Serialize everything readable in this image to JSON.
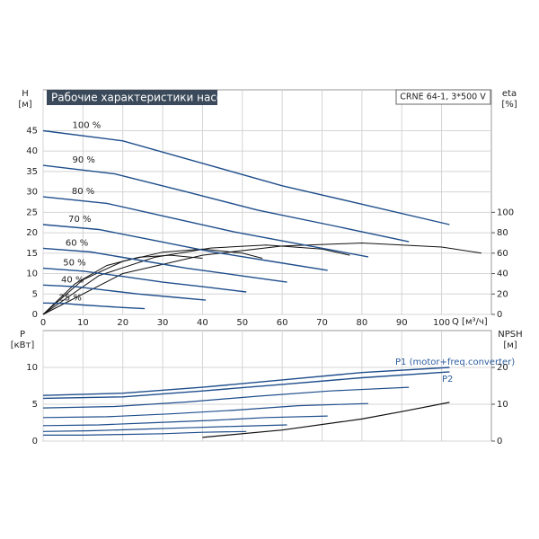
{
  "chart_data": [
    {
      "type": "line",
      "title": "Рабочие характеристики насоса",
      "subtitle": "CRNE 64-1, 3*500 V",
      "xlabel": "Q [м³/ч]",
      "ylabel": "H",
      "yunit": "[м]",
      "y2label": "eta",
      "y2unit": "[%]",
      "xlim": [
        0,
        112.5
      ],
      "ylim": [
        0,
        55
      ],
      "y2lim": [
        0,
        220
      ],
      "xticks": [
        0,
        10,
        20,
        30,
        40,
        50,
        60,
        70,
        80,
        90,
        100
      ],
      "yticks": [
        0,
        5,
        10,
        15,
        20,
        25,
        30,
        35,
        40,
        45
      ],
      "y2ticks": [
        0,
        20,
        40,
        60,
        80,
        100
      ],
      "grid": true,
      "series": [
        {
          "name": "100 %",
          "color": "#1f4e8c",
          "x": [
            0,
            20,
            40,
            60,
            80,
            102
          ],
          "values": [
            45,
            42.5,
            37,
            31.5,
            27,
            22
          ]
        },
        {
          "name": "90 %",
          "color": "#1f4e8c",
          "x": [
            0,
            18,
            36,
            54,
            72,
            91.8
          ],
          "values": [
            36.5,
            34.4,
            30,
            25.5,
            21.9,
            17.8
          ]
        },
        {
          "name": "80 %",
          "color": "#1f4e8c",
          "x": [
            0,
            16,
            32,
            48,
            64,
            81.6
          ],
          "values": [
            28.8,
            27.2,
            23.7,
            20.2,
            17.3,
            14.1
          ]
        },
        {
          "name": "70 %",
          "color": "#1f4e8c",
          "x": [
            0,
            14,
            28,
            42,
            56,
            71.4
          ],
          "values": [
            22,
            20.8,
            18.1,
            15.4,
            13.2,
            10.8
          ]
        },
        {
          "name": "60 %",
          "color": "#1f4e8c",
          "x": [
            0,
            12,
            24,
            36,
            48,
            61.2
          ],
          "values": [
            16.2,
            15.3,
            13.3,
            11.3,
            9.7,
            7.9
          ]
        },
        {
          "name": "50 %",
          "color": "#1f4e8c",
          "x": [
            0,
            10,
            20,
            30,
            40,
            51
          ],
          "values": [
            11.3,
            10.6,
            9.3,
            7.9,
            6.8,
            5.5
          ]
        },
        {
          "name": "40 %",
          "color": "#1f4e8c",
          "x": [
            0,
            8,
            16,
            24,
            32,
            40.8
          ],
          "values": [
            7.2,
            6.8,
            5.9,
            5,
            4.3,
            3.5
          ]
        },
        {
          "name": "25 %",
          "color": "#1f4e8c",
          "x": [
            0,
            5,
            10,
            15,
            20,
            25.5
          ],
          "values": [
            2.8,
            2.7,
            2.3,
            2,
            1.7,
            1.4
          ]
        }
      ],
      "eta_series": [
        {
          "color": "#111111",
          "axis": "y2",
          "x": [
            0,
            20,
            40,
            60,
            80,
            100,
            110
          ],
          "values": [
            0,
            40,
            58,
            67,
            70,
            66,
            60
          ]
        },
        {
          "color": "#111111",
          "axis": "y2",
          "x": [
            0,
            14,
            28,
            42,
            56,
            70,
            77
          ],
          "values": [
            0,
            38,
            56,
            65,
            68,
            64,
            58
          ]
        },
        {
          "color": "#111111",
          "axis": "y2",
          "x": [
            0,
            10,
            20,
            30,
            40,
            50,
            55
          ],
          "values": [
            0,
            34,
            52,
            61,
            64,
            60,
            55
          ]
        },
        {
          "color": "#111111",
          "axis": "y2",
          "x": [
            0,
            8,
            16,
            24,
            32,
            40
          ],
          "values": [
            0,
            30,
            48,
            56,
            58,
            55
          ]
        }
      ]
    },
    {
      "type": "line",
      "ylabel": "P",
      "yunit": "[кВт]",
      "y2label": "NPSH",
      "y2unit": "[м]",
      "xlim": [
        0,
        112.5
      ],
      "ylim": [
        0,
        15
      ],
      "y2lim": [
        0,
        30
      ],
      "yticks": [
        0,
        5,
        10
      ],
      "y2ticks": [
        0,
        10,
        20
      ],
      "grid": true,
      "series": [
        {
          "name": "P1 (motor+freq.converter)",
          "color": "#1f4e8c",
          "x": [
            0,
            20,
            40,
            60,
            80,
            102
          ],
          "values": [
            6.2,
            6.5,
            7.3,
            8.3,
            9.3,
            10
          ]
        },
        {
          "name": "P2",
          "color": "#1f4e8c",
          "x": [
            0,
            20,
            40,
            60,
            80,
            102
          ],
          "values": [
            5.8,
            6,
            6.8,
            7.7,
            8.6,
            9.4
          ]
        }
      ],
      "extra_series": [
        {
          "color": "#1f4e8c",
          "x": [
            0,
            18,
            36,
            54,
            72,
            91.8
          ],
          "values": [
            4.5,
            4.7,
            5.3,
            6.1,
            6.8,
            7.3
          ]
        },
        {
          "color": "#1f4e8c",
          "x": [
            0,
            16,
            32,
            48,
            64,
            81.6
          ],
          "values": [
            3.2,
            3.3,
            3.7,
            4.2,
            4.8,
            5.1
          ]
        },
        {
          "color": "#1f4e8c",
          "x": [
            0,
            14,
            28,
            42,
            56,
            71.4
          ],
          "values": [
            2.1,
            2.2,
            2.5,
            2.8,
            3.2,
            3.4
          ]
        },
        {
          "color": "#1f4e8c",
          "x": [
            0,
            12,
            24,
            36,
            48,
            61.2
          ],
          "values": [
            1.3,
            1.4,
            1.6,
            1.8,
            2,
            2.2
          ]
        },
        {
          "color": "#1f4e8c",
          "x": [
            0,
            10,
            20,
            30,
            40,
            51
          ],
          "values": [
            0.8,
            0.8,
            0.9,
            1,
            1.2,
            1.3
          ]
        }
      ],
      "npsh": {
        "color": "#111111",
        "axis": "y2",
        "x": [
          40,
          60,
          80,
          90,
          102
        ],
        "values": [
          1,
          3,
          6,
          8,
          10.5
        ]
      }
    }
  ]
}
